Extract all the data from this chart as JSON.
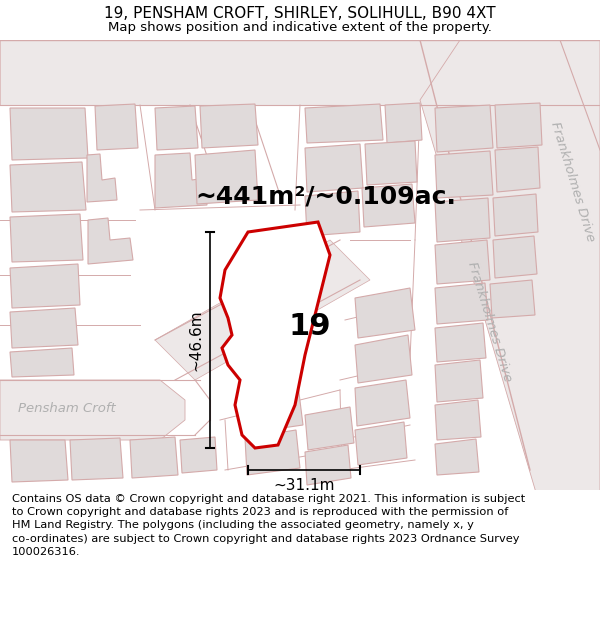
{
  "title_line1": "19, PENSHAM CROFT, SHIRLEY, SOLIHULL, B90 4XT",
  "title_line2": "Map shows position and indicative extent of the property.",
  "footer_text": "Contains OS data © Crown copyright and database right 2021. This information is subject to Crown copyright and database rights 2023 and is reproduced with the permission of HM Land Registry. The polygons (including the associated geometry, namely x, y co-ordinates) are subject to Crown copyright and database rights 2023 Ordnance Survey 100026316.",
  "area_label": "~441m²/~0.109ac.",
  "number_label": "19",
  "dim_horizontal": "~31.1m",
  "dim_vertical": "~46.6m",
  "road_label_left": "Pensham Croft",
  "road_label_right": "Frankholmes Drive",
  "map_bg": "#f7f5f5",
  "block_fill": "#e0dada",
  "block_stroke": "#d4aaaa",
  "road_stroke": "#d4aaaa",
  "property_fill": "#ffffff",
  "property_stroke": "#cc0000",
  "title_fontsize": 11,
  "subtitle_fontsize": 9.5,
  "footer_fontsize": 8.2,
  "area_fontsize": 18,
  "number_fontsize": 22,
  "dim_label_fontsize": 11,
  "road_label_fontsize": 9.5
}
